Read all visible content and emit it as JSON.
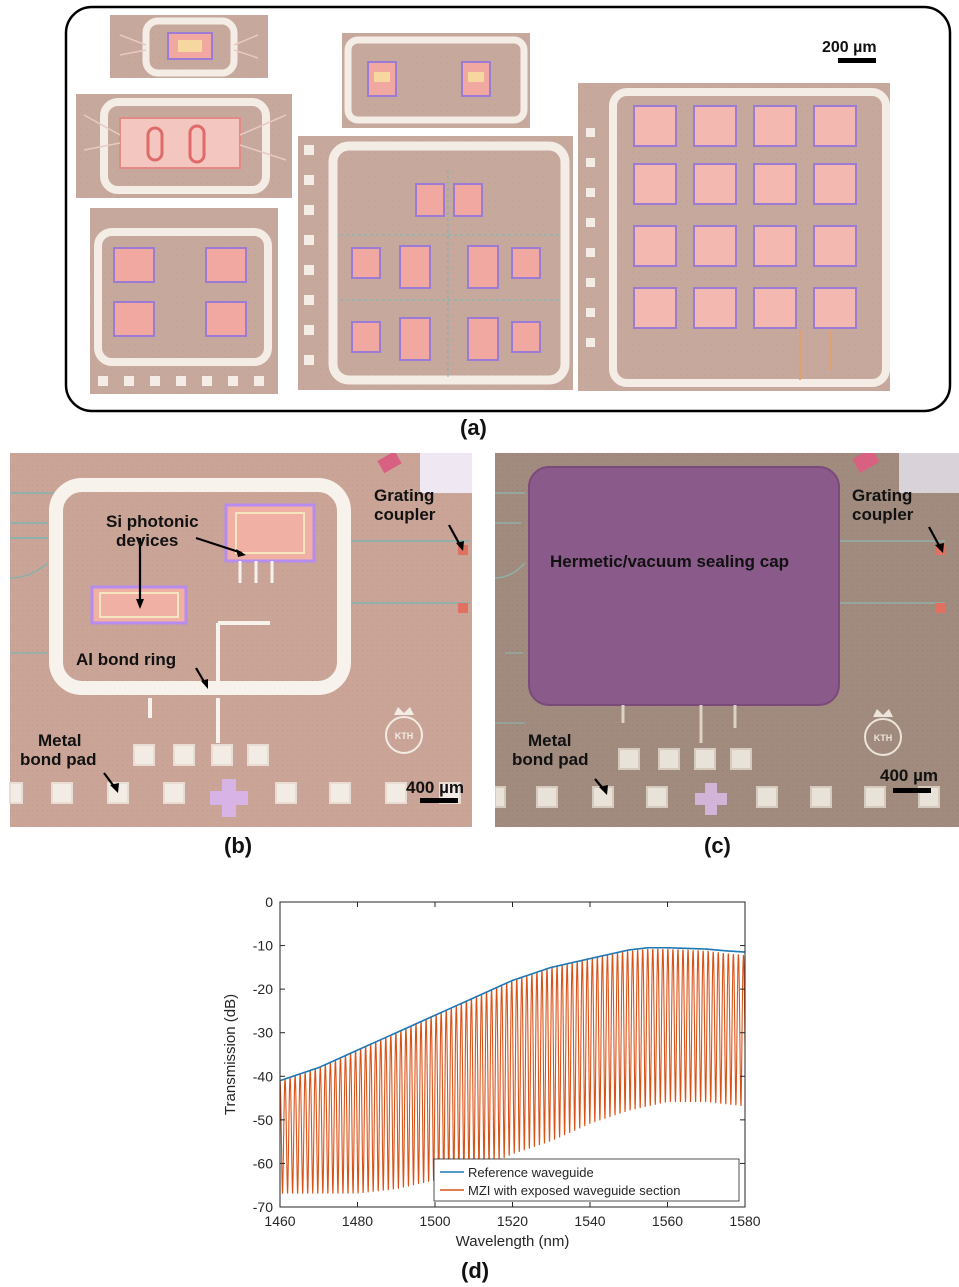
{
  "panel_a": {
    "label": "(a)",
    "scale_bar": "200 µm"
  },
  "panel_b": {
    "label": "(b)",
    "annotations": {
      "grating_coupler": [
        "Grating",
        "coupler"
      ],
      "si_photonic": [
        "Si photonic",
        "devices"
      ],
      "al_bond_ring": "Al bond ring",
      "metal_bond_pad": [
        "Metal",
        "bond pad"
      ],
      "scale_bar": "400 µm",
      "logo_text": "KTH"
    }
  },
  "panel_c": {
    "label": "(c)",
    "annotations": {
      "grating_coupler": [
        "Grating",
        "coupler"
      ],
      "sealing_cap": "Hermetic/vacuum sealing cap",
      "metal_bond_pad": [
        "Metal",
        "bond pad"
      ],
      "scale_bar": "400 µm",
      "logo_text": "KTH"
    }
  },
  "panel_d": {
    "label": "(d)"
  },
  "colors": {
    "chip_bg": "#c9a79c",
    "chip_bg_c": "#a08c80",
    "bond_ring": "#f4ede6",
    "device_pink": "#f0a8a0",
    "device_purple": "#9c7bd4",
    "cap_purple": "#8a5a8a",
    "waveguide_blue": "#7fb3b0",
    "reference_line": "#1f77b4",
    "mzi_line": "#d95319"
  },
  "chart_data": {
    "type": "line",
    "title": "",
    "xlabel": "Wavelength (nm)",
    "ylabel": "Transmission (dB)",
    "xlim": [
      1460,
      1580
    ],
    "ylim": [
      -70,
      0
    ],
    "xticks": [
      "1460",
      "1480",
      "1500",
      "1520",
      "1540",
      "1560",
      "1580"
    ],
    "yticks": [
      "0",
      "-10",
      "-20",
      "-30",
      "-40",
      "-50",
      "-60",
      "-70"
    ],
    "grid": false,
    "legend_position": "bottom-right",
    "series": [
      {
        "name": "Reference waveguide",
        "x": [
          1460,
          1470,
          1480,
          1490,
          1500,
          1510,
          1520,
          1530,
          1540,
          1550,
          1555,
          1560,
          1570,
          1575,
          1580
        ],
        "y": [
          -41,
          -38,
          -34,
          -30,
          -26,
          -22,
          -18,
          -15,
          -13,
          -11,
          -10.5,
          -10.5,
          -10.8,
          -11.2,
          -11.5
        ],
        "color": "#1f77b4"
      },
      {
        "name": "MZI with exposed waveguide section",
        "envelope_x": [
          1460,
          1470,
          1480,
          1490,
          1500,
          1510,
          1520,
          1530,
          1540,
          1550,
          1555,
          1560,
          1570,
          1575,
          1580
        ],
        "envelope_y": [
          -41,
          -38,
          -34,
          -30,
          -26,
          -22,
          -18,
          -15,
          -13,
          -11.2,
          -10.8,
          -10.8,
          -11.2,
          -11.8,
          -12.2
        ],
        "min_x": [
          1460,
          1470,
          1480,
          1490,
          1500,
          1510,
          1520,
          1530,
          1540,
          1550,
          1560,
          1570,
          1580
        ],
        "min_y": [
          -67,
          -67,
          -67,
          -66,
          -64,
          -62,
          -58,
          -55,
          -51,
          -48,
          -46,
          -46,
          -47
        ],
        "fsr_nm": 1.3,
        "color": "#d95319"
      }
    ]
  }
}
